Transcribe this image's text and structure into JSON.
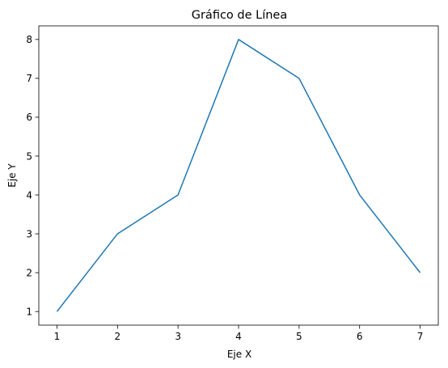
{
  "chart_data": {
    "type": "line",
    "title": "Gráfico de Línea",
    "xlabel": "Eje X",
    "ylabel": "Eje Y",
    "x": [
      1,
      2,
      3,
      4,
      5,
      6,
      7
    ],
    "series": [
      {
        "values": [
          1,
          3,
          4,
          8,
          7,
          4,
          2
        ],
        "color": "#1f77b4"
      }
    ],
    "xticks": [
      "1",
      "2",
      "3",
      "4",
      "5",
      "6",
      "7"
    ],
    "yticks": [
      "1",
      "2",
      "3",
      "4",
      "5",
      "6",
      "7",
      "8"
    ],
    "xlim": [
      0.7,
      7.3
    ],
    "ylim": [
      0.65,
      8.35
    ],
    "grid": false,
    "legend": "none"
  }
}
